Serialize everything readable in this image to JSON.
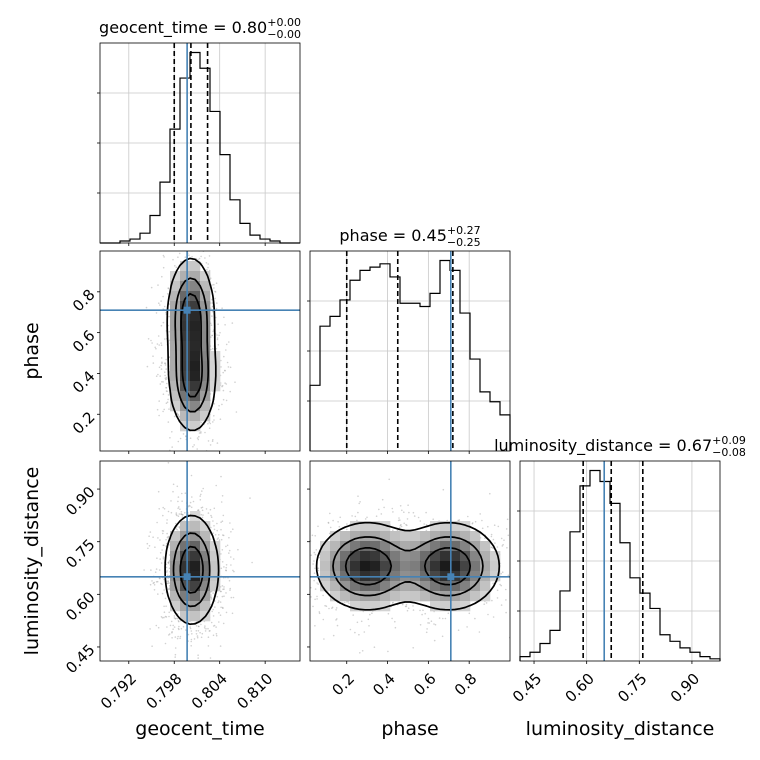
{
  "figure": {
    "type": "corner"
  },
  "chart_data": {
    "type": "corner",
    "grid": true,
    "colors": {
      "truth": "#4682b4",
      "hist": "#000000",
      "quantile": "#000000",
      "samples": "#9a9a9a"
    },
    "parameters": [
      {
        "key": "geocent_time",
        "label": "geocent_time",
        "title_prefix": "geocent_time = 0.80",
        "err_plus": "+0.00",
        "err_minus": "−0.00",
        "range": [
          0.7882,
          0.8146
        ],
        "ticks": [
          0.792,
          0.798,
          0.804,
          0.81
        ],
        "tick_labels": [
          "0.792",
          "0.798",
          "0.804",
          "0.810"
        ],
        "truth": 0.7997,
        "quantiles": [
          0.798,
          0.8002,
          0.8024
        ],
        "median": 0.8
      },
      {
        "key": "phase",
        "label": "phase",
        "title_prefix": "phase = 0.45",
        "err_plus": "+0.27",
        "err_minus": "−0.25",
        "range": [
          0.02,
          1.0
        ],
        "ticks": [
          0.2,
          0.4,
          0.6,
          0.8
        ],
        "tick_labels": [
          "0.2",
          "0.4",
          "0.6",
          "0.8"
        ],
        "truth": 0.71,
        "quantiles": [
          0.2,
          0.45,
          0.72
        ],
        "median": 0.45
      },
      {
        "key": "luminosity_distance",
        "label": "luminosity_distance",
        "title_prefix": "luminosity_distance = 0.67",
        "err_plus": "+0.09",
        "err_minus": "−0.08",
        "range": [
          0.41,
          0.98
        ],
        "ticks": [
          0.45,
          0.6,
          0.75,
          0.9
        ],
        "tick_labels": [
          "0.45",
          "0.60",
          "0.75",
          "0.90"
        ],
        "truth": 0.65,
        "quantiles": [
          0.59,
          0.67,
          0.76
        ],
        "median": 0.67
      }
    ],
    "histograms": {
      "geocent_time": {
        "edges_range": [
          0.7882,
          0.8146
        ],
        "bins": 20,
        "values": [
          0,
          0,
          1,
          2,
          5,
          14,
          31,
          58,
          84,
          97,
          89,
          67,
          45,
          22,
          10,
          4,
          2,
          1,
          0,
          0
        ]
      },
      "phase": {
        "edges_range": [
          0.02,
          1.0
        ],
        "bins": 20,
        "values": [
          20,
          38,
          41,
          46,
          52,
          55,
          56,
          57,
          53,
          45,
          45,
          44,
          48,
          58,
          55,
          42,
          28,
          18,
          15,
          11
        ]
      },
      "luminosity_distance": {
        "edges_range": [
          0.41,
          0.98
        ],
        "bins": 20,
        "values": [
          2,
          4,
          8,
          14,
          32,
          59,
          80,
          87,
          82,
          72,
          54,
          38,
          31,
          24,
          12,
          9,
          6,
          4,
          2,
          1
        ]
      }
    },
    "density": {
      "geocent_time|phase": {
        "peaks": [
          {
            "x": 0.8002,
            "y": 0.68,
            "sx": 0.0015,
            "sy": 0.14,
            "w": 1.0
          },
          {
            "x": 0.8004,
            "y": 0.38,
            "sx": 0.0015,
            "sy": 0.13,
            "w": 0.95
          }
        ]
      },
      "geocent_time|luminosity_distance": {
        "peaks": [
          {
            "x": 0.8003,
            "y": 0.67,
            "sx": 0.0017,
            "sy": 0.075,
            "w": 1.0
          }
        ]
      },
      "phase|luminosity_distance": {
        "peaks": [
          {
            "x": 0.3,
            "y": 0.68,
            "sx": 0.12,
            "sy": 0.06,
            "w": 1.0
          },
          {
            "x": 0.7,
            "y": 0.68,
            "sx": 0.12,
            "sy": 0.06,
            "w": 1.0
          }
        ]
      }
    }
  }
}
